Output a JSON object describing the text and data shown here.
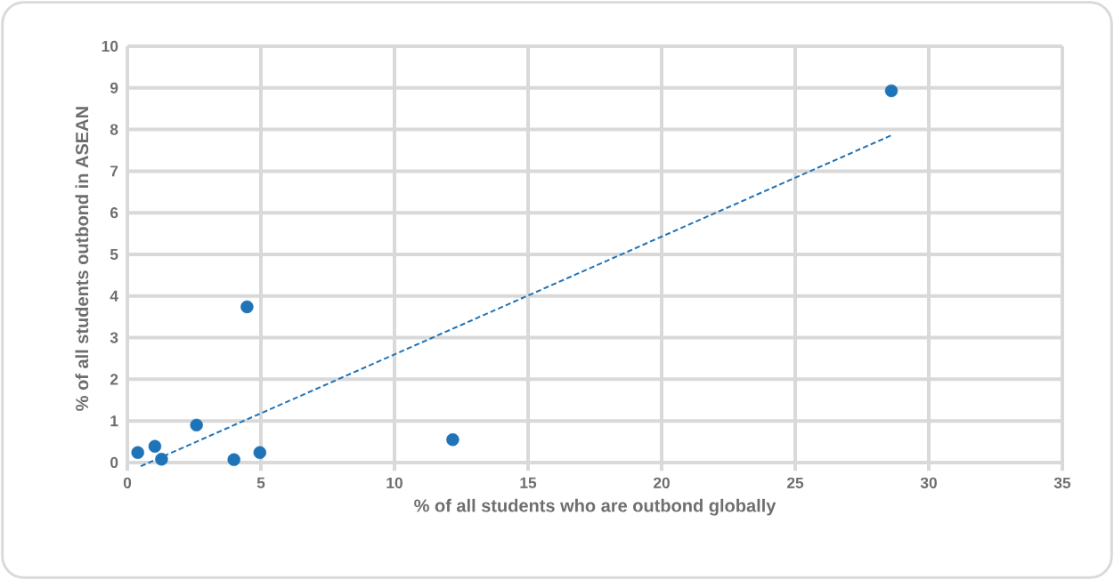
{
  "chart_data": {
    "type": "scatter",
    "xlabel": "% of all students who are outbond globally",
    "ylabel": "% of all students outbond in ASEAN",
    "series": [
      {
        "color": "#1f73b7",
        "marker": "circle",
        "x": [
          0.39,
          1.03,
          1.28,
          2.59,
          3.99,
          4.48,
          4.96,
          12.18,
          28.6
        ],
        "values": [
          0.24,
          0.39,
          0.08,
          0.9,
          0.07,
          3.74,
          0.24,
          0.55,
          8.93
        ]
      },
      {
        "type": "line",
        "color": "#1f73b7",
        "marker": "none",
        "line_style": "dashed",
        "x": [
          0.5,
          28.6
        ],
        "values": [
          -0.09,
          7.86
        ]
      }
    ],
    "xlim": [
      0,
      35
    ],
    "xticks": [
      0,
      5,
      10,
      15,
      20,
      25,
      30,
      35
    ],
    "ylim": [
      -0.2,
      10
    ],
    "yticks": [
      0,
      1,
      2,
      3,
      4,
      5,
      6,
      7,
      8,
      9,
      10
    ],
    "grid": true
  }
}
